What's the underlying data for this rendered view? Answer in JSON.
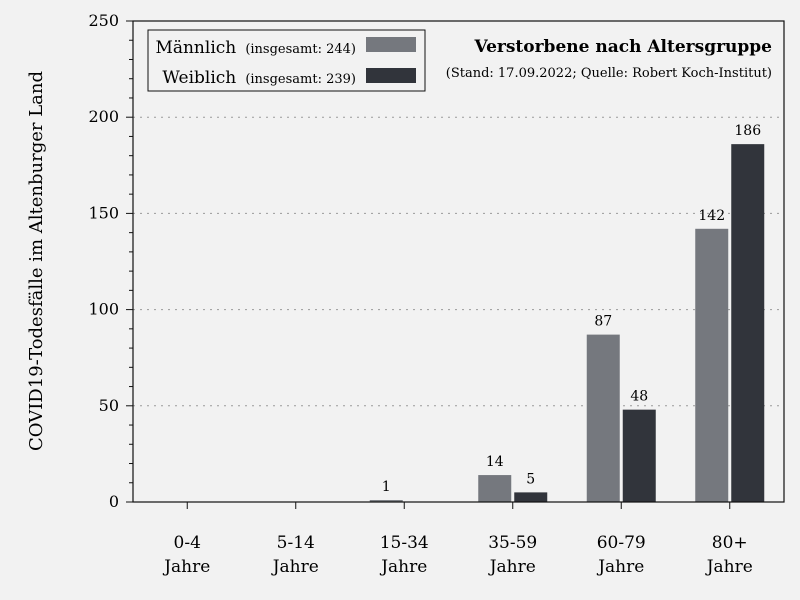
{
  "chart_data": {
    "type": "bar",
    "title": "Verstorbene nach Altersgruppe",
    "subtitle": "(Stand: 17.09.2022; Quelle: Robert Koch-Institut)",
    "ylabel": "COVID19-Todesfälle im Altenburger Land",
    "xlabel": "",
    "ylim": [
      0,
      250
    ],
    "yticks": [
      0,
      50,
      100,
      150,
      200,
      250
    ],
    "grid": "horizontal dotted",
    "legend_position": "top-left",
    "categories": [
      [
        "0-4",
        "Jahre"
      ],
      [
        "5-14",
        "Jahre"
      ],
      [
        "15-34",
        "Jahre"
      ],
      [
        "35-59",
        "Jahre"
      ],
      [
        "60-79",
        "Jahre"
      ],
      [
        "80+",
        "Jahre"
      ]
    ],
    "series": [
      {
        "name": "Männlich",
        "legend_note": "(insgesamt: 244)",
        "color": "#75787e",
        "values": [
          0,
          0,
          1,
          14,
          87,
          142
        ]
      },
      {
        "name": "Weiblich",
        "legend_note": "(insgesamt: 239)",
        "color": "#31343b",
        "values": [
          0,
          0,
          0,
          5,
          48,
          186
        ]
      }
    ]
  }
}
